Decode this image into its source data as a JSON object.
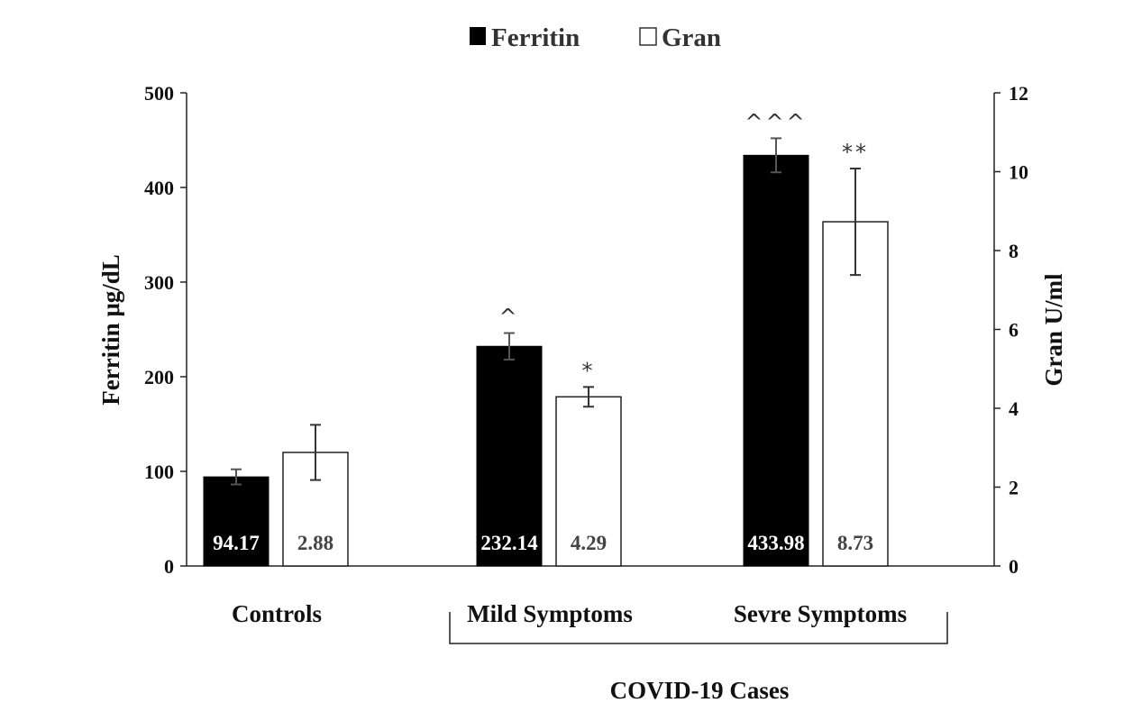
{
  "chart_data": {
    "type": "bar",
    "categories": [
      "Controls",
      "Mild Symptoms",
      "Sevre Symptoms"
    ],
    "group_label": "COVID-19 Cases",
    "series": [
      {
        "name": "Ferritin",
        "axis": "left",
        "color": "#000000",
        "values": [
          94.17,
          232.14,
          433.98
        ],
        "errors": [
          8,
          14,
          18
        ],
        "value_labels": [
          "94.17",
          "232.14",
          "433.98"
        ],
        "marks": [
          "",
          "^",
          "^^^"
        ]
      },
      {
        "name": "Gran",
        "axis": "right",
        "color": "#ffffff",
        "values": [
          2.88,
          4.29,
          8.73
        ],
        "errors": [
          0.7,
          0.25,
          1.35
        ],
        "value_labels": [
          "2.88",
          "4.29",
          "8.73"
        ],
        "marks": [
          "",
          "*",
          "**"
        ]
      }
    ],
    "y_left": {
      "label": "Ferritin μg/dL",
      "ylim": [
        0,
        500
      ],
      "ticks": [
        "0",
        "100",
        "200",
        "300",
        "400",
        "500"
      ]
    },
    "y_right": {
      "label": "Gran U/ml",
      "ylim": [
        0,
        12
      ],
      "ticks": [
        "0",
        "2",
        "4",
        "6",
        "8",
        "10",
        "12"
      ]
    },
    "legend": {
      "position": "top-center",
      "items": [
        "Ferritin",
        "Gran"
      ]
    },
    "grid": false
  }
}
